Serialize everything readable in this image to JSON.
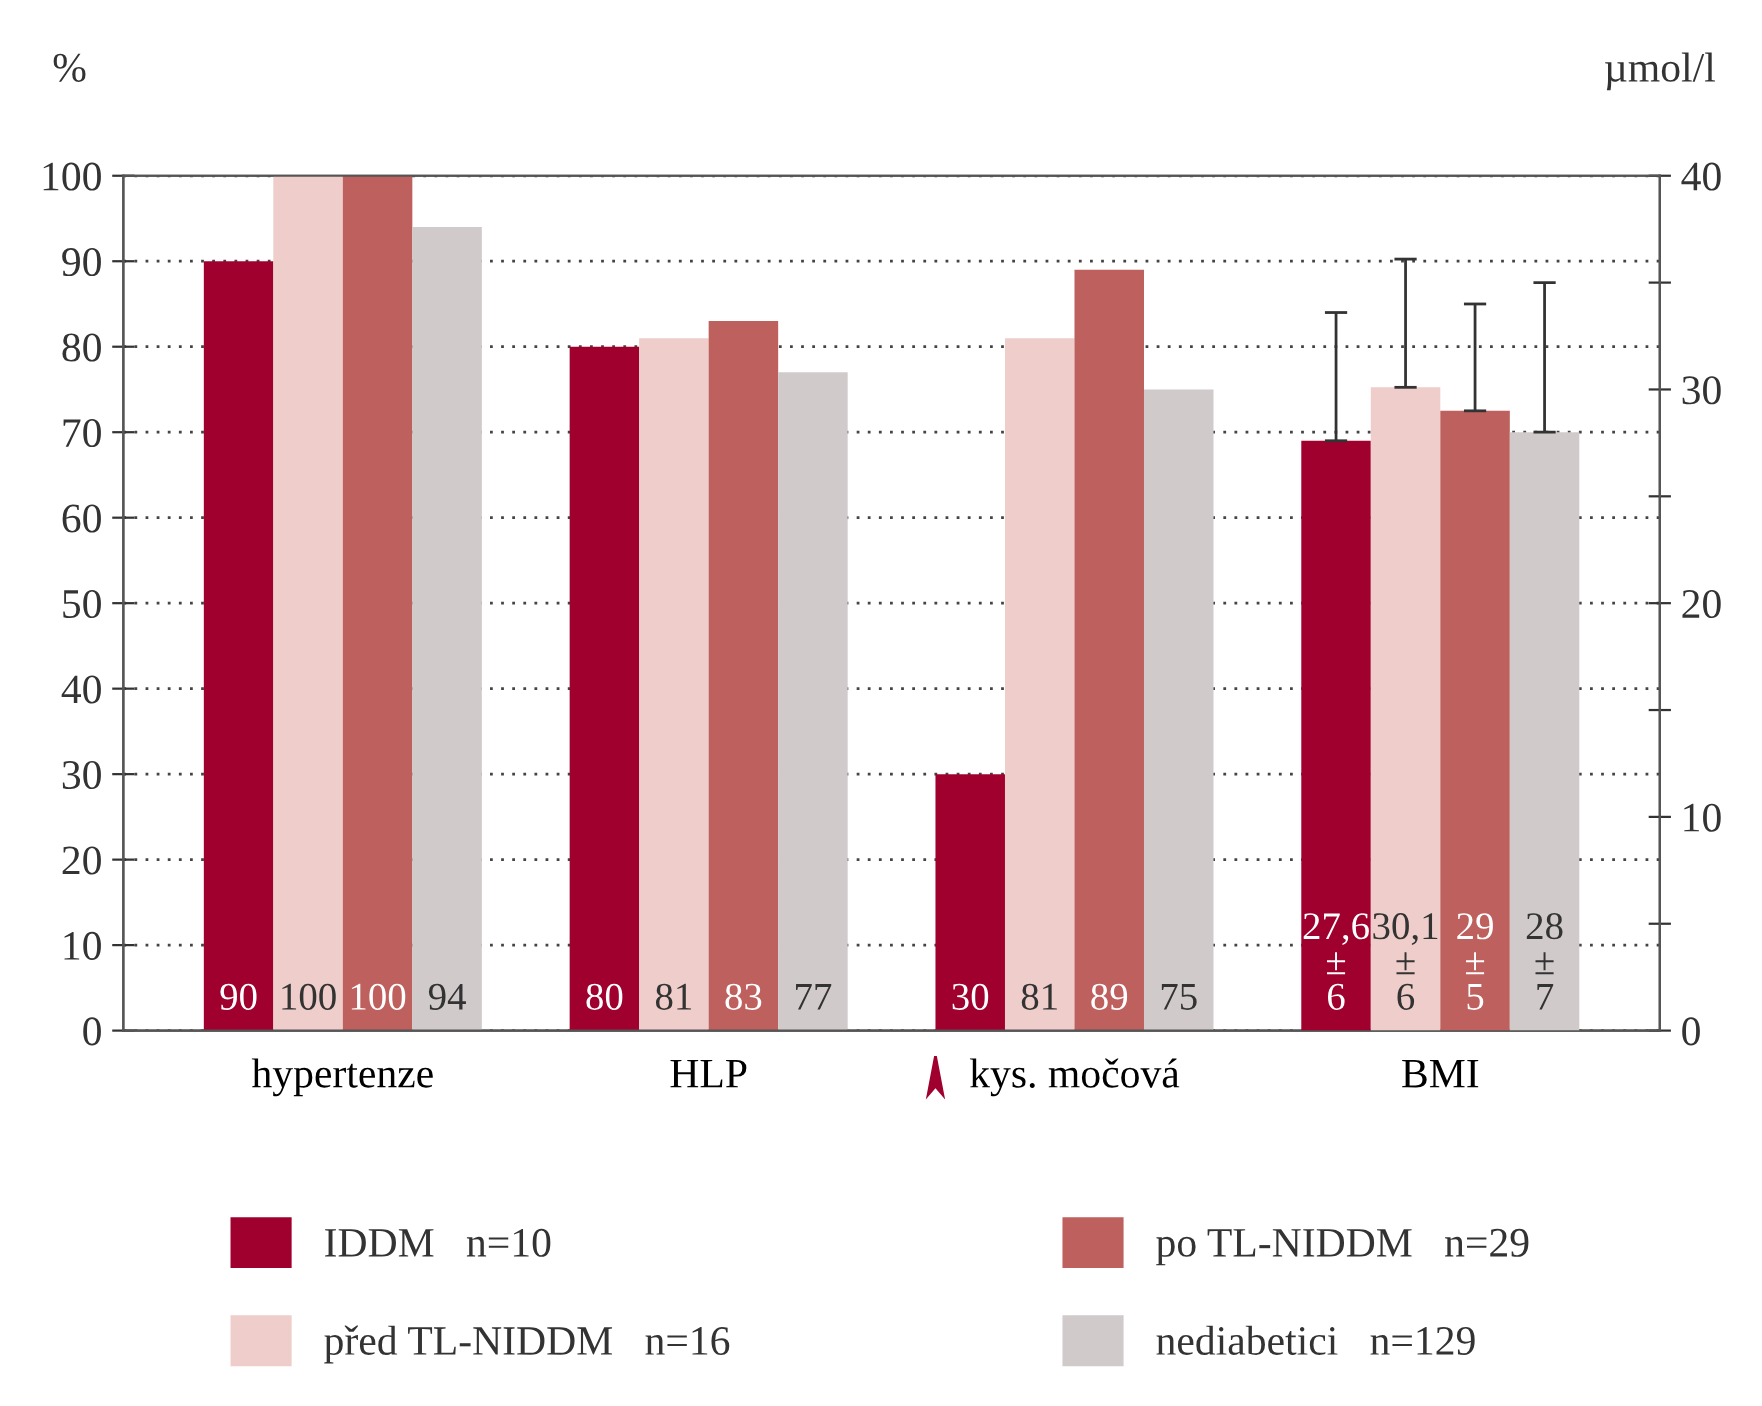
{
  "chart_data": {
    "type": "bar",
    "ylabel": "%",
    "y2label": "µmol/l",
    "categories": [
      "hypertenze",
      "HLP",
      "kys. močová",
      "BMI"
    ],
    "series": [
      {
        "name": "IDDM   n=10",
        "color": "#a0002e",
        "values": [
          90,
          80,
          30,
          null
        ],
        "value_labels": [
          "90",
          "80",
          "30",
          null
        ]
      },
      {
        "name": "před TL-NIDDM   n=16",
        "color": "#eecdca",
        "values": [
          100,
          81,
          81,
          null
        ],
        "value_labels": [
          "100",
          "81",
          "81",
          null
        ]
      },
      {
        "name": "po TL-NIDDM   n=29",
        "color": "#be605d",
        "values": [
          100,
          83,
          89,
          null
        ],
        "value_labels": [
          "100",
          "83",
          "89",
          null
        ]
      },
      {
        "name": "nediabetici   n=129",
        "color": "#d0cacb",
        "values": [
          94,
          77,
          75,
          null
        ],
        "value_labels": [
          "94",
          "77",
          "75",
          null
        ]
      },
      {
        "color": "#a0002e",
        "axis": "y2",
        "values": [
          null,
          null,
          null,
          27.6
        ],
        "errors": [
          null,
          null,
          null,
          6
        ],
        "value_labels": [
          null,
          null,
          null,
          "27,6\n±\n6"
        ]
      },
      {
        "color": "#eecdca",
        "axis": "y2",
        "values": [
          null,
          null,
          null,
          30.1
        ],
        "errors": [
          null,
          null,
          null,
          6
        ],
        "value_labels": [
          null,
          null,
          null,
          "30,1\n±\n6"
        ]
      },
      {
        "color": "#be605d",
        "axis": "y2",
        "values": [
          null,
          null,
          null,
          29
        ],
        "errors": [
          null,
          null,
          null,
          5
        ],
        "value_labels": [
          null,
          null,
          null,
          "29\n±\n5"
        ]
      },
      {
        "color": "#d0cacb",
        "axis": "y2",
        "values": [
          null,
          null,
          null,
          28
        ],
        "errors": [
          null,
          null,
          null,
          7
        ],
        "value_labels": [
          null,
          null,
          null,
          "28\n±\n7"
        ]
      }
    ],
    "ylim": [
      0,
      100
    ],
    "yticks": [
      0,
      10,
      20,
      30,
      40,
      50,
      60,
      70,
      80,
      90,
      100
    ],
    "y2lim": [
      0,
      40
    ],
    "y2ticks": [
      0,
      {
        "value": 5,
        "label": null
      },
      10,
      {
        "value": 15,
        "label": null
      },
      20,
      {
        "value": 25,
        "label": null
      },
      30,
      {
        "value": 35,
        "label": null
      },
      40
    ],
    "grid": "y",
    "legend": "bottom"
  }
}
